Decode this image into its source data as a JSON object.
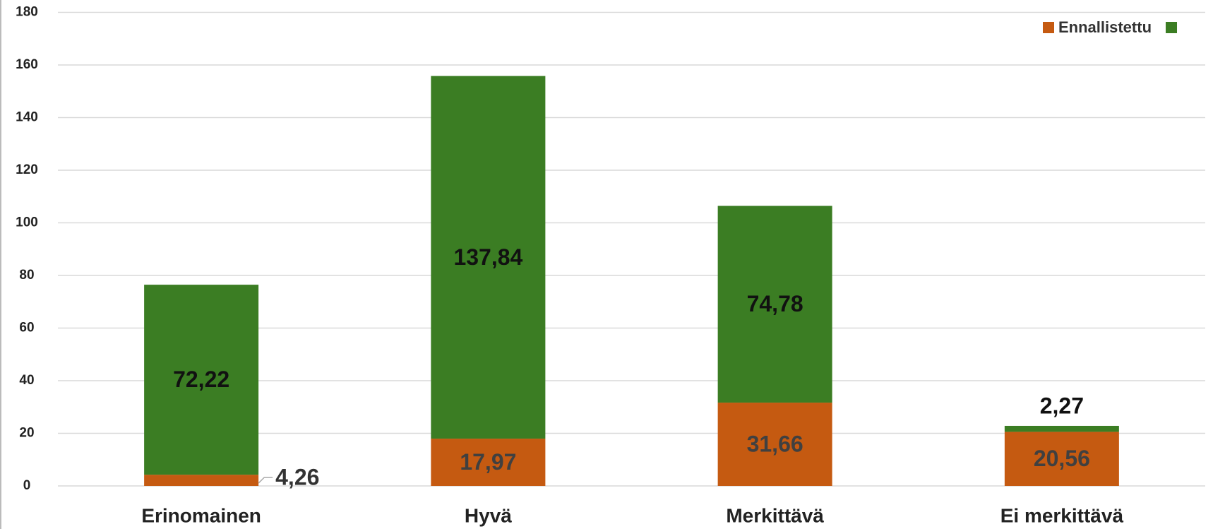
{
  "chart_data": {
    "type": "stacked_bar",
    "categories": [
      "Erinomainen",
      "Hyvä",
      "Merkittävä",
      "Ei merkittävä"
    ],
    "series": [
      {
        "name": "Ennallistettu",
        "color": "#c55a11",
        "values": [
          4.26,
          17.97,
          31.66,
          20.56
        ],
        "value_labels": [
          "4,26",
          "17,97",
          "31,66",
          "20,56"
        ]
      },
      {
        "color": "#3b7d23",
        "values": [
          72.22,
          137.84,
          74.78,
          2.27
        ],
        "value_labels": [
          "72,22",
          "137,84",
          "74,78",
          "2,27"
        ]
      }
    ],
    "ylim": [
      0,
      180
    ],
    "yticks": [
      0,
      20,
      40,
      60,
      80,
      100,
      120,
      140,
      160,
      180
    ],
    "grid": true,
    "legend": "top-right"
  }
}
